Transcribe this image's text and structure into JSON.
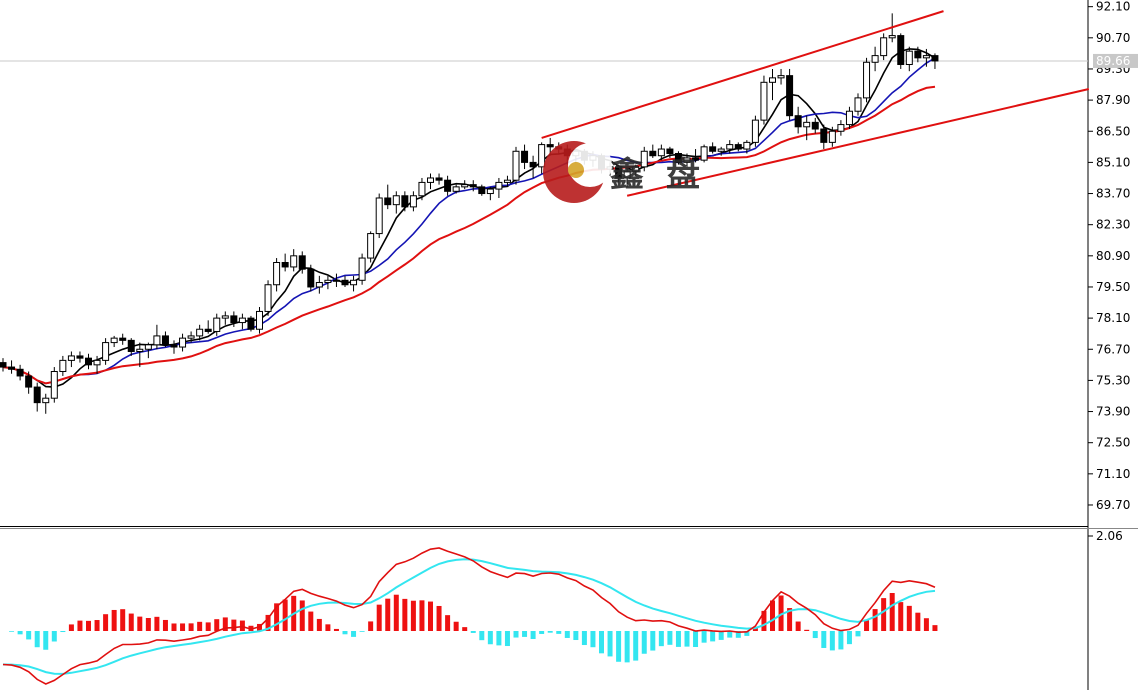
{
  "chart_data": [
    {
      "type": "candlestick",
      "panel": "price",
      "ylim": [
        68.8,
        92.4
      ],
      "y_ticks": [
        "92.10",
        "90.70",
        "89.30",
        "87.90",
        "86.50",
        "85.10",
        "83.70",
        "82.30",
        "80.90",
        "79.50",
        "78.10",
        "76.70",
        "75.30",
        "73.90",
        "72.50",
        "71.10",
        "69.70"
      ],
      "last_price_label": "89.66",
      "last_price": 89.66,
      "grid": false,
      "candles": [
        [
          76.1,
          76.3,
          75.7,
          75.9
        ],
        [
          75.9,
          76.2,
          75.6,
          75.8
        ],
        [
          75.8,
          76.0,
          75.3,
          75.5
        ],
        [
          75.5,
          75.7,
          74.7,
          75.0
        ],
        [
          75.0,
          75.2,
          73.9,
          74.3
        ],
        [
          74.3,
          74.7,
          73.8,
          74.5
        ],
        [
          74.5,
          75.9,
          74.3,
          75.7
        ],
        [
          75.7,
          76.4,
          75.5,
          76.2
        ],
        [
          76.2,
          76.6,
          75.9,
          76.4
        ],
        [
          76.4,
          76.6,
          76.1,
          76.3
        ],
        [
          76.3,
          76.5,
          75.8,
          76.0
        ],
        [
          76.0,
          76.4,
          75.6,
          76.2
        ],
        [
          76.2,
          77.2,
          76.0,
          77.0
        ],
        [
          77.0,
          77.3,
          76.8,
          77.2
        ],
        [
          77.2,
          77.4,
          76.9,
          77.1
        ],
        [
          77.1,
          77.2,
          76.4,
          76.6
        ],
        [
          76.6,
          77.0,
          75.9,
          76.7
        ],
        [
          76.7,
          77.0,
          76.3,
          76.9
        ],
        [
          76.9,
          77.8,
          76.7,
          77.3
        ],
        [
          77.3,
          77.5,
          76.8,
          76.9
        ],
        [
          76.9,
          77.1,
          76.5,
          76.8
        ],
        [
          76.8,
          77.4,
          76.6,
          77.2
        ],
        [
          77.2,
          77.5,
          77.0,
          77.3
        ],
        [
          77.3,
          77.8,
          77.1,
          77.6
        ],
        [
          77.6,
          78.0,
          77.4,
          77.5
        ],
        [
          77.5,
          78.3,
          77.3,
          78.1
        ],
        [
          78.1,
          78.4,
          77.8,
          78.2
        ],
        [
          78.2,
          78.4,
          77.7,
          77.9
        ],
        [
          77.9,
          78.3,
          77.6,
          78.1
        ],
        [
          78.1,
          78.2,
          77.5,
          77.6
        ],
        [
          77.6,
          78.6,
          77.4,
          78.4
        ],
        [
          78.4,
          79.8,
          78.2,
          79.6
        ],
        [
          79.6,
          80.8,
          79.3,
          80.6
        ],
        [
          80.6,
          81.0,
          80.2,
          80.4
        ],
        [
          80.4,
          81.2,
          80.2,
          80.9
        ],
        [
          80.9,
          81.1,
          80.1,
          80.3
        ],
        [
          80.3,
          80.5,
          79.3,
          79.5
        ],
        [
          79.5,
          80.0,
          79.2,
          79.7
        ],
        [
          79.7,
          80.0,
          79.4,
          79.8
        ],
        [
          79.8,
          80.1,
          79.5,
          79.8
        ],
        [
          79.8,
          80.0,
          79.5,
          79.6
        ],
        [
          79.6,
          80.0,
          79.3,
          79.8
        ],
        [
          79.8,
          81.0,
          79.6,
          80.8
        ],
        [
          80.8,
          82.0,
          80.6,
          81.9
        ],
        [
          81.9,
          83.7,
          81.7,
          83.5
        ],
        [
          83.5,
          84.1,
          83.0,
          83.2
        ],
        [
          83.2,
          83.8,
          82.8,
          83.6
        ],
        [
          83.6,
          83.8,
          82.9,
          83.1
        ],
        [
          83.1,
          83.8,
          82.9,
          83.6
        ],
        [
          83.6,
          84.4,
          83.4,
          84.2
        ],
        [
          84.2,
          84.6,
          83.9,
          84.4
        ],
        [
          84.4,
          84.6,
          84.1,
          84.3
        ],
        [
          84.3,
          84.5,
          83.6,
          83.8
        ],
        [
          83.8,
          84.1,
          83.7,
          84.0
        ],
        [
          84.0,
          84.3,
          83.9,
          84.1
        ],
        [
          84.1,
          84.3,
          83.8,
          84.0
        ],
        [
          84.0,
          84.1,
          83.6,
          83.7
        ],
        [
          83.7,
          84.0,
          83.4,
          83.9
        ],
        [
          83.9,
          84.4,
          83.5,
          84.2
        ],
        [
          84.2,
          84.5,
          84.0,
          84.3
        ],
        [
          84.3,
          85.8,
          84.1,
          85.6
        ],
        [
          85.6,
          85.9,
          84.8,
          85.1
        ],
        [
          85.1,
          85.4,
          84.4,
          84.9
        ],
        [
          84.9,
          86.0,
          84.6,
          85.9
        ],
        [
          85.9,
          86.2,
          85.4,
          85.8
        ],
        [
          85.8,
          86.0,
          85.5,
          85.7
        ],
        [
          85.7,
          85.9,
          85.0,
          85.4
        ],
        [
          85.4,
          85.7,
          85.1,
          85.6
        ],
        [
          85.6,
          85.7,
          85.0,
          85.2
        ],
        [
          85.2,
          85.6,
          84.9,
          85.4
        ],
        [
          85.4,
          85.5,
          84.6,
          84.8
        ],
        [
          84.8,
          85.1,
          84.5,
          84.9
        ],
        [
          84.9,
          85.0,
          84.2,
          84.4
        ],
        [
          84.4,
          84.8,
          84.0,
          84.7
        ],
        [
          84.7,
          85.0,
          84.5,
          84.9
        ],
        [
          84.9,
          85.8,
          84.7,
          85.6
        ],
        [
          85.6,
          85.9,
          85.3,
          85.4
        ],
        [
          85.4,
          85.9,
          85.2,
          85.7
        ],
        [
          85.7,
          85.8,
          85.3,
          85.5
        ],
        [
          85.5,
          85.6,
          85.0,
          85.1
        ],
        [
          85.1,
          85.5,
          84.9,
          85.3
        ],
        [
          85.3,
          85.7,
          85.1,
          85.2
        ],
        [
          85.2,
          85.9,
          85.1,
          85.8
        ],
        [
          85.8,
          86.0,
          85.5,
          85.6
        ],
        [
          85.6,
          85.8,
          85.4,
          85.7
        ],
        [
          85.7,
          86.1,
          85.5,
          85.9
        ],
        [
          85.9,
          86.0,
          85.6,
          85.7
        ],
        [
          85.7,
          86.1,
          85.5,
          86.0
        ],
        [
          86.0,
          87.2,
          85.8,
          87.0
        ],
        [
          87.0,
          89.0,
          86.8,
          88.7
        ],
        [
          88.7,
          89.3,
          87.9,
          88.9
        ],
        [
          88.9,
          89.3,
          88.6,
          89.0
        ],
        [
          89.0,
          89.3,
          87.0,
          87.2
        ],
        [
          87.2,
          87.6,
          86.4,
          86.7
        ],
        [
          86.7,
          87.2,
          86.1,
          86.9
        ],
        [
          86.9,
          87.1,
          86.4,
          86.6
        ],
        [
          86.6,
          86.8,
          85.7,
          86.0
        ],
        [
          86.0,
          86.7,
          85.8,
          86.5
        ],
        [
          86.5,
          87.0,
          86.3,
          86.8
        ],
        [
          86.8,
          87.6,
          86.6,
          87.4
        ],
        [
          87.4,
          88.2,
          87.2,
          88.0
        ],
        [
          88.0,
          89.8,
          87.8,
          89.6
        ],
        [
          89.6,
          90.3,
          89.2,
          89.9
        ],
        [
          89.9,
          90.9,
          89.7,
          90.7
        ],
        [
          90.7,
          91.8,
          90.5,
          90.8
        ],
        [
          90.8,
          90.9,
          89.3,
          89.5
        ],
        [
          89.5,
          90.3,
          89.2,
          90.1
        ],
        [
          90.1,
          90.3,
          89.6,
          89.8
        ],
        [
          89.8,
          90.2,
          89.4,
          89.9
        ],
        [
          89.9,
          90.0,
          89.3,
          89.66
        ]
      ],
      "series": [
        {
          "color": "#000000",
          "period": 5
        },
        {
          "color": "#1414b4",
          "period": 10
        },
        {
          "color": "#e01010",
          "period": 20
        }
      ],
      "trendlines": [
        {
          "color": "#e01010",
          "points": [
            [
              63,
              86.2
            ],
            [
              110,
              91.9
            ]
          ]
        },
        {
          "color": "#e01010",
          "points": [
            [
              73,
              83.6
            ],
            [
              127,
              88.4
            ]
          ]
        }
      ]
    },
    {
      "type": "macd",
      "panel": "indicator",
      "y_ticks": [
        "2.06"
      ],
      "ylim": [
        -2.45,
        2.25
      ],
      "histogram_pos_color": "#ee1111",
      "histogram_neg_color": "#33e6f0",
      "line_colors": {
        "dif": "#e01010",
        "dea": "#33e6f0"
      }
    }
  ],
  "watermark": {
    "chars": [
      "鑫",
      "盘"
    ]
  }
}
